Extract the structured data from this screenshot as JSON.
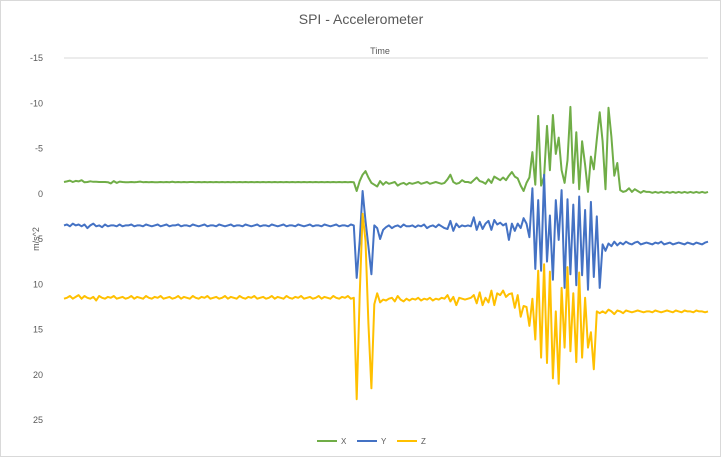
{
  "chart_data": {
    "type": "line",
    "title": "SPI - Accelerometer",
    "xlabel": "Time",
    "ylabel": "m/s^2",
    "y_reversed": true,
    "ylim": [
      -15,
      25
    ],
    "yticks": [
      -15,
      -10,
      -5,
      0,
      5,
      10,
      15,
      20,
      25
    ],
    "grid": false,
    "legend_position": "bottom",
    "n_samples": 221,
    "series": [
      {
        "name": "X",
        "color": "#70ad47",
        "values": [
          -1.3,
          -1.36,
          -1.45,
          -1.3,
          -1.42,
          -1.36,
          -1.5,
          -1.26,
          -1.3,
          -1.38,
          -1.32,
          -1.32,
          -1.3,
          -1.3,
          -1.3,
          -1.28,
          -1.14,
          -1.4,
          -1.2,
          -1.34,
          -1.3,
          -1.28,
          -1.28,
          -1.3,
          -1.26,
          -1.3,
          -1.34,
          -1.28,
          -1.3,
          -1.28,
          -1.3,
          -1.28,
          -1.26,
          -1.3,
          -1.28,
          -1.3,
          -1.28,
          -1.32,
          -1.28,
          -1.3,
          -1.28,
          -1.3,
          -1.28,
          -1.3,
          -1.3,
          -1.28,
          -1.3,
          -1.28,
          -1.3,
          -1.28,
          -1.3,
          -1.28,
          -1.3,
          -1.28,
          -1.3,
          -1.28,
          -1.3,
          -1.28,
          -1.3,
          -1.28,
          -1.3,
          -1.28,
          -1.3,
          -1.28,
          -1.3,
          -1.28,
          -1.3,
          -1.28,
          -1.3,
          -1.28,
          -1.3,
          -1.28,
          -1.3,
          -1.28,
          -1.3,
          -1.28,
          -1.3,
          -1.28,
          -1.3,
          -1.28,
          -1.3,
          -1.28,
          -1.3,
          -1.28,
          -1.3,
          -1.28,
          -1.3,
          -1.28,
          -1.3,
          -1.28,
          -1.3,
          -1.28,
          -1.3,
          -1.28,
          -1.3,
          -1.28,
          -1.3,
          -1.28,
          -1.3,
          -1.28,
          -0.3,
          -1.4,
          -2.1,
          -2.5,
          -1.8,
          -1.2,
          -1.0,
          -0.8,
          -1.4,
          -1.0,
          -1.3,
          -1.1,
          -1.2,
          -1.3,
          -0.9,
          -1.1,
          -1.2,
          -1.0,
          -1.2,
          -1.1,
          -1.2,
          -1.3,
          -1.1,
          -1.2,
          -1.3,
          -1.1,
          -1.2,
          -1.3,
          -1.2,
          -1.1,
          -1.2,
          -1.6,
          -2.1,
          -1.3,
          -1.1,
          -1.2,
          -1.5,
          -1.3,
          -1.3,
          -1.2,
          -1.5,
          -1.8,
          -1.4,
          -1.3,
          -1.1,
          -1.6,
          -1.2,
          -1.9,
          -1.7,
          -1.5,
          -1.8,
          -1.5,
          -2.0,
          -2.4,
          -1.9,
          -1.7,
          -0.9,
          -0.3,
          -1.2,
          -1.8,
          -4.6,
          -1.0,
          -8.6,
          -0.9,
          -1.9,
          -7.5,
          -2.6,
          -8.7,
          -4.4,
          -6.2,
          -2.6,
          -1.2,
          -3.7,
          -9.6,
          -1.2,
          -6.8,
          -0.5,
          -5.8,
          -3.2,
          -0.2,
          -4.1,
          -2.7,
          -6.0,
          -9.0,
          -5.8,
          -0.5,
          -9.5,
          -6.3,
          -2.0,
          -3.4,
          -0.4,
          -0.2,
          -0.3,
          -0.6,
          -0.2,
          -0.5,
          -0.3,
          -0.1,
          -0.3,
          -0.2,
          -0.2,
          -0.1,
          -0.2,
          -0.1,
          -0.2,
          -0.1,
          -0.2,
          -0.1,
          -0.2,
          -0.1,
          -0.2,
          -0.1,
          -0.2,
          -0.1,
          -0.2,
          -0.1,
          -0.2,
          -0.1,
          -0.2,
          -0.1,
          -0.2
        ]
      },
      {
        "name": "Y",
        "color": "#4472c4",
        "values": [
          3.5,
          3.4,
          3.6,
          3.3,
          3.5,
          3.4,
          3.6,
          3.4,
          3.8,
          3.5,
          3.3,
          3.6,
          3.5,
          3.7,
          3.4,
          3.6,
          3.5,
          3.5,
          3.6,
          3.4,
          3.6,
          3.5,
          3.5,
          3.4,
          3.6,
          3.5,
          3.5,
          3.6,
          3.4,
          3.5,
          3.6,
          3.5,
          3.4,
          3.6,
          3.5,
          3.4,
          3.6,
          3.5,
          3.5,
          3.4,
          3.6,
          3.5,
          3.5,
          3.6,
          3.4,
          3.5,
          3.6,
          3.5,
          3.4,
          3.6,
          3.5,
          3.5,
          3.6,
          3.4,
          3.5,
          3.6,
          3.5,
          3.4,
          3.6,
          3.5,
          3.5,
          3.6,
          3.4,
          3.5,
          3.6,
          3.5,
          3.4,
          3.6,
          3.5,
          3.5,
          3.6,
          3.4,
          3.5,
          3.6,
          3.5,
          3.4,
          3.6,
          3.5,
          3.5,
          3.6,
          3.4,
          3.5,
          3.6,
          3.5,
          3.4,
          3.6,
          3.5,
          3.5,
          3.6,
          3.4,
          3.5,
          3.6,
          3.5,
          3.4,
          3.6,
          3.5,
          3.5,
          3.6,
          3.4,
          3.5,
          9.3,
          5.2,
          -0.3,
          3.0,
          5.8,
          8.9,
          3.5,
          3.8,
          5.0,
          4.0,
          3.7,
          3.5,
          3.8,
          3.6,
          3.5,
          3.7,
          3.4,
          3.6,
          3.6,
          3.5,
          3.7,
          3.5,
          3.6,
          3.4,
          3.8,
          3.6,
          3.5,
          3.7,
          3.4,
          3.6,
          3.8,
          3.9,
          3.0,
          4.1,
          3.3,
          3.7,
          3.5,
          3.6,
          3.5,
          3.6,
          2.6,
          4.0,
          3.1,
          3.9,
          3.3,
          3.0,
          4.0,
          2.9,
          3.4,
          3.2,
          3.5,
          3.3,
          5.1,
          3.3,
          4.1,
          3.3,
          3.8,
          2.7,
          3.3,
          4.8,
          -0.6,
          8.3,
          0.7,
          8.5,
          -2.1,
          7.5,
          2.4,
          9.5,
          0.7,
          5.1,
          -0.4,
          10.4,
          0.6,
          8.9,
          1.2,
          10.1,
          0.3,
          9.0,
          1.8,
          10.6,
          0.9,
          9.2,
          2.5,
          10.4,
          5.6,
          6.3,
          5.5,
          5.8,
          5.3,
          5.7,
          5.4,
          5.6,
          5.3,
          5.5,
          5.6,
          5.4,
          5.3,
          5.6,
          5.5,
          5.4,
          5.5,
          5.6,
          5.4,
          5.5,
          5.3,
          5.6,
          5.5,
          5.4,
          5.6,
          5.5,
          5.4,
          5.5,
          5.6,
          5.4,
          5.5,
          5.6,
          5.4,
          5.5,
          5.6,
          5.4,
          5.3
        ]
      },
      {
        "name": "Z",
        "color": "#ffc000",
        "values": [
          11.6,
          11.5,
          11.3,
          11.6,
          11.4,
          11.2,
          11.6,
          11.3,
          11.5,
          11.6,
          11.4,
          11.8,
          11.3,
          11.5,
          11.6,
          11.4,
          11.5,
          11.3,
          11.6,
          11.5,
          11.4,
          11.6,
          11.5,
          11.3,
          11.6,
          11.4,
          11.5,
          11.6,
          11.3,
          11.5,
          11.6,
          11.4,
          11.5,
          11.3,
          11.6,
          11.5,
          11.4,
          11.6,
          11.5,
          11.3,
          11.6,
          11.4,
          11.5,
          11.6,
          11.3,
          11.5,
          11.6,
          11.4,
          11.5,
          11.3,
          11.6,
          11.5,
          11.4,
          11.6,
          11.5,
          11.3,
          11.6,
          11.4,
          11.5,
          11.6,
          11.3,
          11.5,
          11.6,
          11.4,
          11.5,
          11.3,
          11.6,
          11.5,
          11.4,
          11.6,
          11.5,
          11.3,
          11.6,
          11.4,
          11.5,
          11.6,
          11.3,
          11.5,
          11.6,
          11.4,
          11.5,
          11.3,
          11.6,
          11.5,
          11.4,
          11.6,
          11.5,
          11.3,
          11.6,
          11.4,
          11.5,
          11.6,
          11.3,
          11.5,
          11.6,
          11.4,
          11.5,
          11.3,
          11.6,
          11.5,
          22.7,
          11.2,
          2.2,
          5.2,
          14.3,
          21.5,
          12.2,
          11.0,
          12.0,
          11.7,
          11.8,
          11.6,
          11.5,
          11.9,
          11.3,
          11.7,
          11.9,
          11.6,
          11.8,
          11.6,
          11.7,
          11.5,
          11.8,
          11.6,
          11.7,
          11.5,
          11.8,
          11.6,
          11.7,
          11.5,
          11.6,
          11.2,
          11.9,
          11.4,
          12.3,
          11.5,
          11.6,
          11.7,
          11.6,
          11.5,
          11.2,
          12.1,
          10.9,
          12.3,
          11.5,
          12.0,
          10.7,
          12.3,
          11.0,
          11.2,
          10.7,
          11.4,
          11.1,
          11.0,
          12.6,
          11.2,
          13.6,
          12.4,
          12.5,
          14.6,
          11.6,
          16.1,
          8.5,
          18.1,
          7.8,
          18.7,
          8.6,
          20.4,
          13.0,
          21.0,
          10.4,
          17.0,
          8.1,
          17.4,
          11.0,
          18.6,
          8.7,
          18.1,
          11.5,
          17.0,
          15.3,
          19.4,
          13.0,
          13.2,
          13.0,
          13.2,
          12.8,
          13.0,
          13.3,
          12.9,
          13.0,
          13.2,
          12.9,
          13.0,
          13.1,
          13.0,
          12.9,
          13.0,
          13.1,
          13.0,
          13.0,
          13.1,
          12.9,
          13.0,
          13.1,
          13.0,
          12.9,
          13.0,
          13.1,
          12.9,
          13.0,
          13.1,
          12.9,
          13.0,
          13.0,
          13.1,
          12.9,
          13.0,
          13.0,
          13.1,
          13.0
        ]
      }
    ]
  }
}
